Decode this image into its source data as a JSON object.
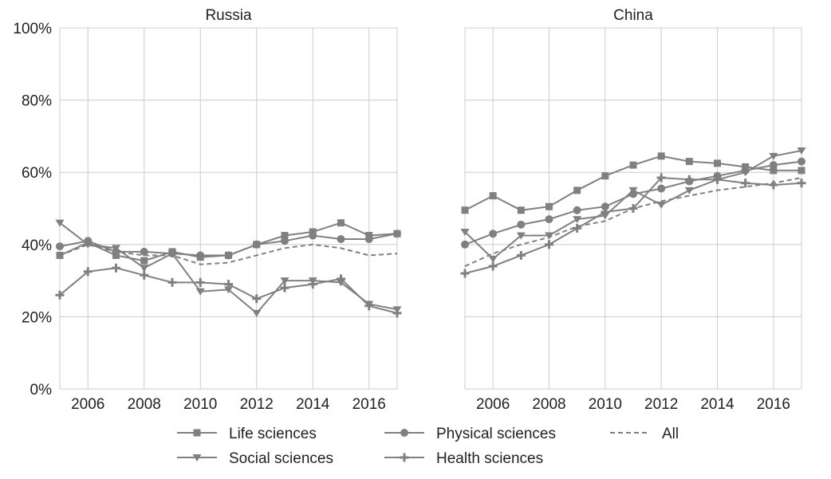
{
  "chart_data": [
    {
      "type": "line",
      "title": "Russia",
      "xlabel": "",
      "ylabel": "",
      "x": [
        2005,
        2006,
        2007,
        2008,
        2009,
        2010,
        2011,
        2012,
        2013,
        2014,
        2015,
        2016,
        2017
      ],
      "xlim": [
        2005,
        2017
      ],
      "ylim": [
        0,
        100
      ],
      "x_ticks": [
        "2006",
        "2008",
        "2010",
        "2012",
        "2014",
        "2016"
      ],
      "y_ticks": [
        "0%",
        "20%",
        "40%",
        "60%",
        "80%",
        "100%"
      ],
      "grid": true,
      "series": [
        {
          "name": "Life sciences",
          "marker": "square",
          "dash": false,
          "values": [
            37,
            40.5,
            37,
            35.5,
            38,
            36.5,
            37,
            40,
            42.5,
            43.5,
            46,
            42.5,
            43
          ]
        },
        {
          "name": "Physical sciences",
          "marker": "circle",
          "dash": false,
          "values": [
            39.5,
            41,
            38,
            38,
            37.5,
            37,
            37,
            40,
            41,
            42.5,
            41.5,
            41.5,
            43
          ]
        },
        {
          "name": "All",
          "marker": "none",
          "dash": true,
          "values": [
            37,
            40,
            38,
            37,
            37,
            34.5,
            35,
            37,
            39,
            40,
            39,
            37,
            37.5
          ]
        },
        {
          "name": "Social sciences",
          "marker": "triangle",
          "dash": false,
          "values": [
            46,
            40,
            39,
            33.5,
            37.5,
            27,
            27.5,
            21,
            30,
            30,
            29.5,
            23.5,
            22
          ]
        },
        {
          "name": "Health sciences",
          "marker": "plus",
          "dash": false,
          "values": [
            26,
            32.5,
            33.5,
            31.5,
            29.5,
            29.5,
            29,
            25,
            28,
            29,
            30.5,
            23,
            21
          ]
        }
      ]
    },
    {
      "type": "line",
      "title": "China",
      "xlabel": "",
      "ylabel": "",
      "x": [
        2005,
        2006,
        2007,
        2008,
        2009,
        2010,
        2011,
        2012,
        2013,
        2014,
        2015,
        2016,
        2017
      ],
      "xlim": [
        2005,
        2017
      ],
      "ylim": [
        0,
        100
      ],
      "x_ticks": [
        "2006",
        "2008",
        "2010",
        "2012",
        "2014",
        "2016"
      ],
      "grid": true,
      "series": [
        {
          "name": "Life sciences",
          "marker": "square",
          "dash": false,
          "values": [
            49.5,
            53.5,
            49.5,
            50.5,
            55,
            59,
            62,
            64.5,
            63,
            62.5,
            61.5,
            60.5,
            60.5
          ]
        },
        {
          "name": "Physical sciences",
          "marker": "circle",
          "dash": false,
          "values": [
            40,
            43,
            45.5,
            47,
            49.5,
            50.5,
            54,
            55.5,
            57.5,
            59,
            60.5,
            62,
            63
          ]
        },
        {
          "name": "All",
          "marker": "none",
          "dash": true,
          "values": [
            34,
            37.5,
            40,
            42,
            45,
            46.5,
            50,
            52,
            53.5,
            55,
            56,
            57,
            58.5
          ]
        },
        {
          "name": "Social sciences",
          "marker": "triangle",
          "dash": false,
          "values": [
            43.5,
            36,
            42.5,
            42.5,
            47,
            48,
            55,
            51,
            55,
            58,
            60,
            64.5,
            66
          ]
        },
        {
          "name": "Health sciences",
          "marker": "plus",
          "dash": false,
          "values": [
            32,
            34,
            37,
            40,
            44.5,
            49,
            50,
            58.5,
            58,
            58,
            57,
            56.5,
            57
          ]
        }
      ]
    }
  ],
  "legend": {
    "placement": "bottom",
    "items": [
      {
        "label": "Life sciences",
        "marker": "square",
        "dash": false
      },
      {
        "label": "Physical sciences",
        "marker": "circle",
        "dash": false
      },
      {
        "label": "All",
        "marker": "none",
        "dash": true
      },
      {
        "label": "Social sciences",
        "marker": "triangle",
        "dash": false
      },
      {
        "label": "Health sciences",
        "marker": "plus",
        "dash": false
      }
    ]
  },
  "colors": {
    "series": "#808080",
    "grid": "#cccccc",
    "text": "#222222"
  }
}
